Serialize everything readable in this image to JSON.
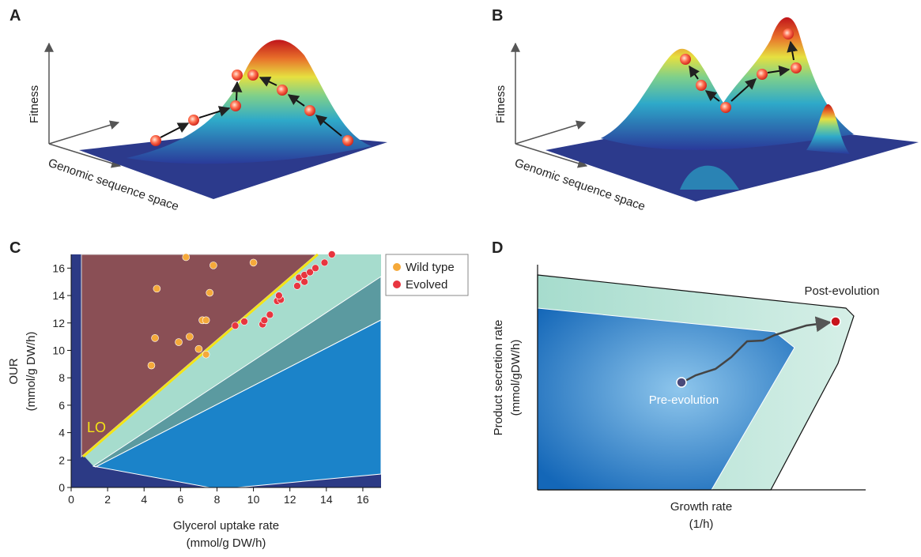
{
  "panels": {
    "a": {
      "label": "A",
      "y_label": "Fitness",
      "x_label": "Genomic sequence space"
    },
    "b": {
      "label": "B",
      "y_label": "Fitness",
      "x_label": "Genomic sequence space"
    },
    "d": {
      "label": "D",
      "y_label": "Product secretion rate",
      "y_unit": "(mmol/gDW/h)",
      "x_label": "Growth rate",
      "x_unit": "(1/h)",
      "start": "Pre-evolution",
      "end": "Post-evolution"
    }
  },
  "chart_data": {
    "type": "scatter",
    "panel_label": "C",
    "y_label": "OUR",
    "y_unit": "(mmol/g DW/h)",
    "x_label": "Glycerol uptake rate",
    "x_unit": "(mmol/g DW/h)",
    "annotation": "LO",
    "xlim": [
      0,
      17
    ],
    "ylim": [
      0,
      17
    ],
    "xticks": [
      0,
      2,
      4,
      6,
      8,
      10,
      12,
      14,
      16
    ],
    "yticks": [
      0,
      2,
      4,
      6,
      8,
      10,
      12,
      14,
      16
    ],
    "legend": "outside-right",
    "series": [
      {
        "name": "Wild type",
        "color": "#f5a93a",
        "x": [
          4.4,
          4.6,
          4.7,
          5.9,
          6.5,
          7.0,
          7.2,
          7.4,
          7.4,
          7.6,
          6.3,
          7.8,
          10.0
        ],
        "values": [
          8.9,
          10.9,
          14.5,
          10.6,
          11.0,
          10.1,
          12.2,
          12.2,
          9.7,
          14.2,
          16.8,
          16.2,
          16.4
        ]
      },
      {
        "name": "Evolved",
        "color": "#e8353f",
        "x": [
          9.0,
          9.5,
          10.5,
          10.6,
          10.9,
          11.3,
          11.5,
          11.4,
          12.4,
          12.5,
          12.8,
          12.8,
          13.1,
          13.4,
          13.9,
          14.3
        ],
        "values": [
          11.8,
          12.1,
          11.9,
          12.2,
          12.6,
          13.6,
          13.7,
          14.0,
          14.7,
          15.3,
          15.0,
          15.5,
          15.7,
          16.0,
          16.4,
          17.0
        ]
      }
    ]
  }
}
